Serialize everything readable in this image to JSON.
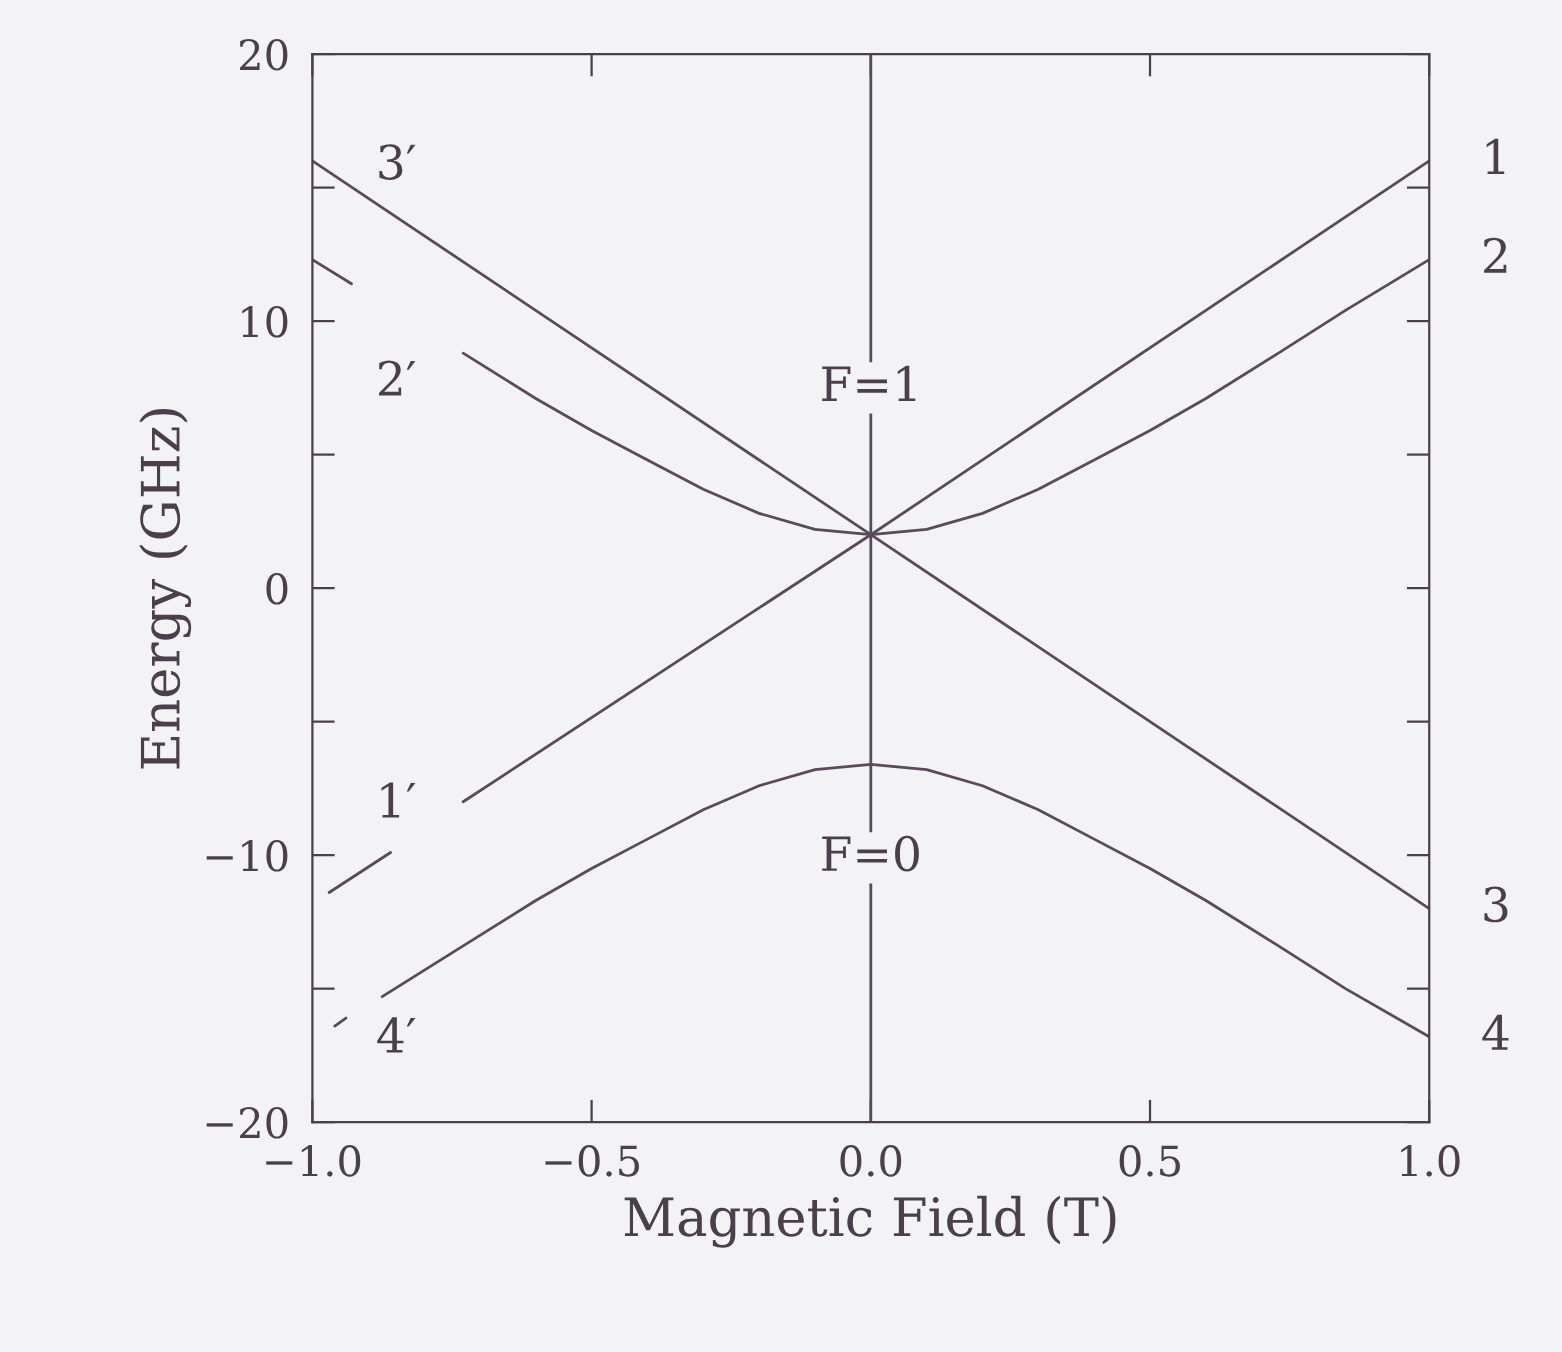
{
  "chart_data": {
    "type": "line",
    "xlabel": "Magnetic Field (T)",
    "ylabel": "Energy (GHz)",
    "xlim": [
      -1,
      1
    ],
    "ylim": [
      -20,
      20
    ],
    "xticks": [
      {
        "value": -1,
        "label": "−1.0"
      },
      {
        "value": -0.5,
        "label": "−0.5"
      },
      {
        "value": 0,
        "label": "0.0"
      },
      {
        "value": 0.5,
        "label": "0.5"
      },
      {
        "value": 1,
        "label": "1.0"
      }
    ],
    "yticks": [
      {
        "value": -20,
        "label": "−20"
      },
      {
        "value": -15,
        "label": null
      },
      {
        "value": -10,
        "label": "−10"
      },
      {
        "value": -5,
        "label": null
      },
      0,
      {
        "value": 5,
        "label": null
      },
      10,
      {
        "value": 15,
        "label": null
      },
      20
    ],
    "grid": false,
    "legend": false,
    "marker": "none",
    "line_style": "solid",
    "series": [
      {
        "color": "#5a4a5a",
        "x": [
          -1,
          0,
          1
        ],
        "values": [
          16.0,
          2.0,
          -12.0
        ]
      },
      {
        "color": "#5a4a5a",
        "x": [
          -0.97,
          -0.86,
          -0.8,
          -0.73,
          0,
          1
        ],
        "values": [
          -11.4,
          -9.9,
          null,
          -8.0,
          2.0,
          16.0
        ]
      },
      {
        "color": "#5a4a5a",
        "x": [
          -1,
          -0.93,
          -0.8,
          -0.73,
          -0.6,
          -0.5,
          -0.4,
          -0.3,
          -0.2,
          -0.1,
          0,
          0.1,
          0.2,
          0.3,
          0.4,
          0.5,
          0.6,
          0.73,
          0.85,
          1
        ],
        "values": [
          12.3,
          11.4,
          null,
          8.8,
          7.1,
          5.9,
          4.8,
          3.7,
          2.8,
          2.2,
          2.0,
          2.2,
          2.8,
          3.7,
          4.8,
          5.9,
          7.1,
          8.8,
          10.4,
          12.3
        ]
      },
      {
        "color": "#5a4a5a",
        "x": [
          -0.96,
          -0.94,
          -0.9,
          -0.875,
          -0.73,
          -0.6,
          -0.5,
          -0.4,
          -0.3,
          -0.2,
          -0.1,
          0,
          0.1,
          0.2,
          0.3,
          0.4,
          0.5,
          0.6,
          0.73,
          0.85,
          1
        ],
        "values": [
          -16.4,
          -16.1,
          null,
          -15.3,
          -13.4,
          -11.7,
          -10.5,
          -9.4,
          -8.3,
          -7.4,
          -6.8,
          -6.6,
          -6.8,
          -7.4,
          -8.3,
          -9.4,
          -10.5,
          -11.7,
          -13.4,
          -15.0,
          -16.8
        ]
      }
    ],
    "ref_lines": [
      {
        "axis": "x",
        "value": 0,
        "color": "#5a4a5a"
      }
    ],
    "annotations": [
      {
        "text": "F=1",
        "x": 0,
        "y": 7.5
      },
      {
        "text": "F=0",
        "x": 0,
        "y": -10.1
      },
      {
        "text": "3′",
        "x": -0.85,
        "y": 15.8
      },
      {
        "text": "2′",
        "x": -0.85,
        "y": 7.7
      },
      {
        "text": "1′",
        "x": -0.85,
        "y": -8.1
      },
      {
        "text": "4′",
        "x": -0.85,
        "y": -16.9
      },
      {
        "text": "1",
        "x": 1,
        "y": 16.0
      },
      {
        "text": "2",
        "x": 1,
        "y": 12.3
      },
      {
        "text": "3",
        "x": 1,
        "y": -12.0
      },
      {
        "text": "4",
        "x": 1,
        "y": -16.8
      }
    ]
  }
}
